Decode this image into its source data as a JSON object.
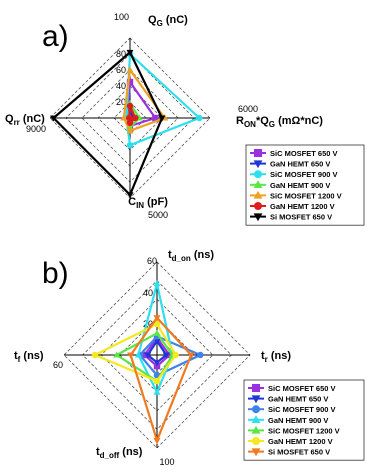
{
  "chart_data": [
    {
      "type": "radar",
      "panel_label": "a)",
      "axes": [
        {
          "key": "qg",
          "main": "Q",
          "sub": "G",
          "suffix": " (nC)",
          "max": 100,
          "max_label": "100",
          "ticks": [
            {
              "v": 20,
              "label": "20"
            },
            {
              "v": 40,
              "label": "40"
            },
            {
              "v": 60,
              "label": "60"
            },
            {
              "v": 80,
              "label": "80"
            }
          ]
        },
        {
          "key": "ronqg",
          "main": "R",
          "sub": "ON",
          "suffix": "*Q",
          "sub2": "G",
          "suffix2": " (mΩ*nC)",
          "max": 6000,
          "max_label": "6000",
          "ticks": []
        },
        {
          "key": "cin",
          "main": "C",
          "sub": "IN",
          "suffix": " (pF)",
          "max": 5000,
          "max_label": "5000",
          "ticks": []
        },
        {
          "key": "qrr",
          "main": "Q",
          "sub": "rr",
          "suffix": " (nC)",
          "max": 9000,
          "max_label": "9000",
          "ticks": []
        }
      ],
      "series": [
        {
          "name": "SiC MOSFET 650 V",
          "color": "#9b30e0",
          "marker": "square",
          "values": [
            45,
            1900,
            500,
            300
          ]
        },
        {
          "name": "GaN HEMT 650 V",
          "color": "#1f35d8",
          "marker": "triangle-down",
          "values": [
            8,
            300,
            400,
            100
          ]
        },
        {
          "name": "SiC MOSFET 900 V",
          "color": "#2ee0ee",
          "marker": "circle",
          "values": [
            80,
            5200,
            1700,
            400
          ]
        },
        {
          "name": "GaN HEMT 900 V",
          "color": "#5ce646",
          "marker": "triangle-up",
          "values": [
            18,
            700,
            600,
            150
          ]
        },
        {
          "name": "SiC MOSFET 1200 V",
          "color": "#f0a020",
          "marker": "triangle-up",
          "values": [
            60,
            2600,
            800,
            700
          ]
        },
        {
          "name": "GaN HEMT 1200 V",
          "color": "#e01b1b",
          "marker": "circle",
          "values": [
            15,
            400,
            300,
            100
          ]
        },
        {
          "name": "Si MOSFET 650 V",
          "color": "#000000",
          "marker": "triangle-down",
          "values": [
            82,
            2400,
            4800,
            8600
          ]
        }
      ]
    },
    {
      "type": "radar",
      "panel_label": "b)",
      "axes": [
        {
          "key": "tdon",
          "main": "t",
          "sub": "d_on",
          "suffix": " (ns)",
          "max": 60,
          "max_label": "60",
          "ticks": [
            {
              "v": 20,
              "label": "20"
            },
            {
              "v": 40,
              "label": "40"
            }
          ]
        },
        {
          "key": "tr",
          "main": "t",
          "sub": "r",
          "suffix": " (ns)",
          "max": 60,
          "max_label": "",
          "ticks": []
        },
        {
          "key": "tdoff",
          "main": "t",
          "sub": "d_off",
          "suffix": " (ns)",
          "max": 100,
          "max_label": "100",
          "ticks": []
        },
        {
          "key": "tf",
          "main": "t",
          "sub": "f",
          "suffix": " (ns)",
          "max": 60,
          "max_label": "60",
          "ticks": []
        }
      ],
      "series": [
        {
          "name": "SiC MOSFET 650 V",
          "color": "#9b30e0",
          "marker": "square",
          "values": [
            11,
            8,
            12,
            8
          ]
        },
        {
          "name": "GaN HEMT 650 V",
          "color": "#1f35d8",
          "marker": "triangle-down",
          "values": [
            9,
            6,
            8,
            6
          ]
        },
        {
          "name": "SiC MOSFET 900 V",
          "color": "#3f82e8",
          "marker": "circle",
          "values": [
            12,
            28,
            22,
            11
          ]
        },
        {
          "name": "GaN HEMT 900 V",
          "color": "#2ee0ee",
          "marker": "triangle-up",
          "values": [
            46,
            10,
            40,
            12
          ]
        },
        {
          "name": "SiC MOSFET 1200 V",
          "color": "#5ce646",
          "marker": "triangle-up",
          "values": [
            14,
            10,
            28,
            26
          ]
        },
        {
          "name": "GaN HEMT 1200 V",
          "color": "#f5e81e",
          "marker": "circle",
          "values": [
            20,
            12,
            28,
            40
          ]
        },
        {
          "name": "Si MOSFET 650 V",
          "color": "#f07a20",
          "marker": "triangle-down",
          "values": [
            24,
            22,
            92,
            17
          ]
        }
      ]
    }
  ]
}
